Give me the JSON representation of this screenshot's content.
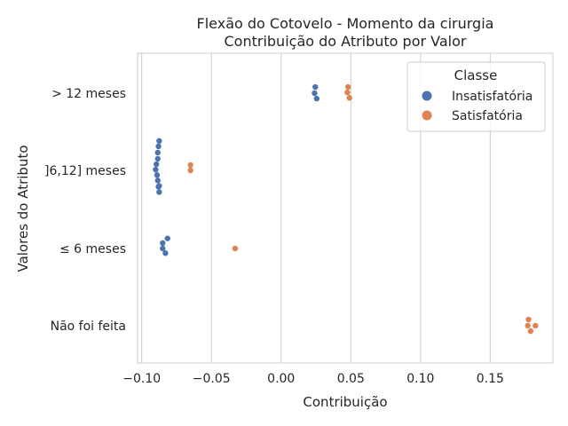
{
  "chart_data": {
    "type": "scatter",
    "title_line1": "Flexão do Cotovelo - Momento da cirurgia",
    "title_line2": "Contribuição do Atributo por Valor",
    "xlabel": "Contribuição",
    "ylabel": "Valores do Atributo",
    "xlim": [
      -0.103,
      0.195
    ],
    "xticks": [
      -0.1,
      -0.05,
      0.0,
      0.05,
      0.1,
      0.15
    ],
    "xtick_labels": [
      "−0.10",
      "−0.05",
      "0.00",
      "0.05",
      "0.10",
      "0.15"
    ],
    "categories": [
      "> 12 meses",
      "]6,12] meses",
      "≤ 6 meses",
      "Não foi feita"
    ],
    "grid": true,
    "legend": {
      "title": "Classe",
      "placement": "top-right"
    },
    "series": [
      {
        "name": "Insatisfatória",
        "color": "#4c72b0",
        "points": [
          {
            "category": 0,
            "x": 0.0245,
            "jitter": -0.08
          },
          {
            "category": 0,
            "x": 0.024,
            "jitter": 0.0
          },
          {
            "category": 0,
            "x": 0.0255,
            "jitter": 0.07
          },
          {
            "category": 1,
            "x": -0.0875,
            "jitter": -0.38
          },
          {
            "category": 1,
            "x": -0.088,
            "jitter": -0.31
          },
          {
            "category": 1,
            "x": -0.0885,
            "jitter": -0.23
          },
          {
            "category": 1,
            "x": -0.0885,
            "jitter": -0.15
          },
          {
            "category": 1,
            "x": -0.0895,
            "jitter": -0.08
          },
          {
            "category": 1,
            "x": -0.09,
            "jitter": -0.01
          },
          {
            "category": 1,
            "x": -0.089,
            "jitter": 0.06
          },
          {
            "category": 1,
            "x": -0.0885,
            "jitter": 0.13
          },
          {
            "category": 1,
            "x": -0.088,
            "jitter": 0.21
          },
          {
            "category": 1,
            "x": -0.0875,
            "jitter": 0.28
          },
          {
            "category": 2,
            "x": -0.0815,
            "jitter": -0.13
          },
          {
            "category": 2,
            "x": -0.085,
            "jitter": -0.07
          },
          {
            "category": 2,
            "x": -0.085,
            "jitter": 0.0
          },
          {
            "category": 2,
            "x": -0.083,
            "jitter": 0.06
          },
          {
            "category": 1,
            "x": -0.0875,
            "jitter": 0.2
          }
        ]
      },
      {
        "name": "Satisfatória",
        "color": "#dd8452",
        "points": [
          {
            "category": 0,
            "x": 0.048,
            "jitter": -0.08
          },
          {
            "category": 0,
            "x": 0.0475,
            "jitter": -0.01
          },
          {
            "category": 0,
            "x": 0.049,
            "jitter": 0.06
          },
          {
            "category": 1,
            "x": -0.065,
            "jitter": -0.07
          },
          {
            "category": 1,
            "x": -0.065,
            "jitter": 0.0
          },
          {
            "category": 2,
            "x": -0.033,
            "jitter": 0.0
          },
          {
            "category": 3,
            "x": 0.1775,
            "jitter": -0.08
          },
          {
            "category": 3,
            "x": 0.177,
            "jitter": 0.0
          },
          {
            "category": 3,
            "x": 0.1825,
            "jitter": 0.0
          },
          {
            "category": 3,
            "x": 0.179,
            "jitter": 0.07
          }
        ]
      }
    ]
  }
}
